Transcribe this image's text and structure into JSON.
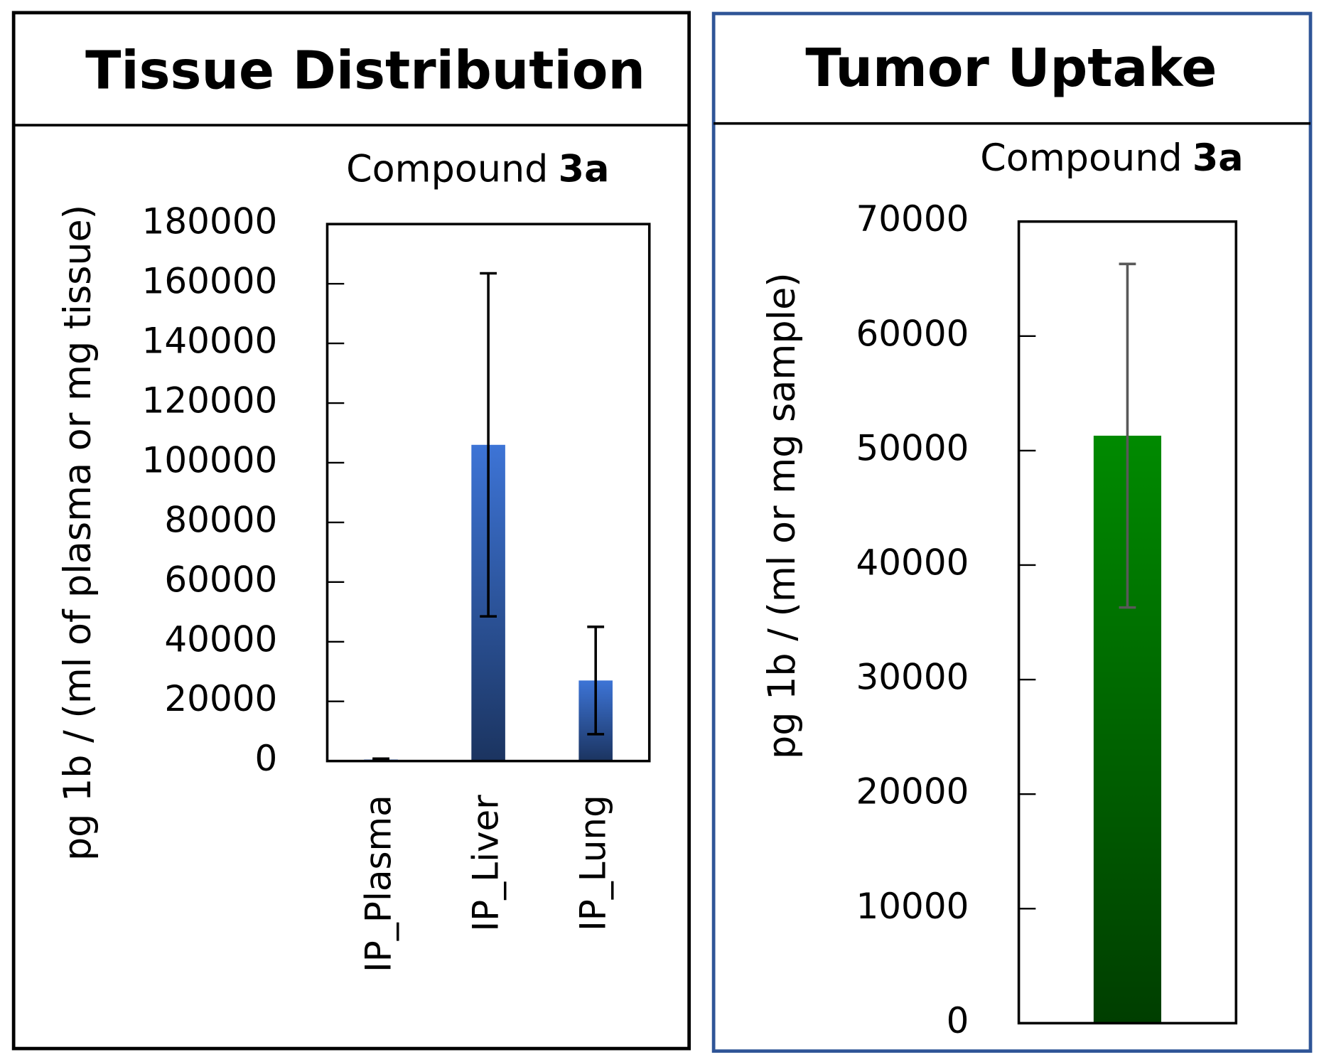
{
  "chart_data": [
    {
      "type": "bar",
      "title": "Tissue Distribution",
      "subtitle": [
        "Compound",
        "3a"
      ],
      "y_label": "pg 1b / (ml of plasma or mg tissue)",
      "categories": [
        "IP_Plasma",
        "IP_Liver",
        "IP_Lung"
      ],
      "values": [
        500,
        106000,
        27000
      ],
      "errors": [
        300,
        57500,
        18000
      ],
      "color": "#3d74d6",
      "error_color": "#000000",
      "ylim": [
        0,
        180000
      ],
      "yticks": [
        0,
        20000,
        40000,
        60000,
        80000,
        100000,
        120000,
        140000,
        160000,
        180000
      ]
    },
    {
      "type": "bar",
      "title": "Tumor Uptake",
      "subtitle": [
        "Compound",
        "3a"
      ],
      "y_label": "pg 1b / (ml or mg sample)",
      "categories": [
        null
      ],
      "values": [
        51300
      ],
      "errors": [
        15000
      ],
      "color": "#008a00",
      "error_color": "#595959",
      "ylim": [
        0,
        70000
      ],
      "yticks": [
        0,
        10000,
        20000,
        30000,
        40000,
        50000,
        60000,
        70000
      ]
    }
  ]
}
